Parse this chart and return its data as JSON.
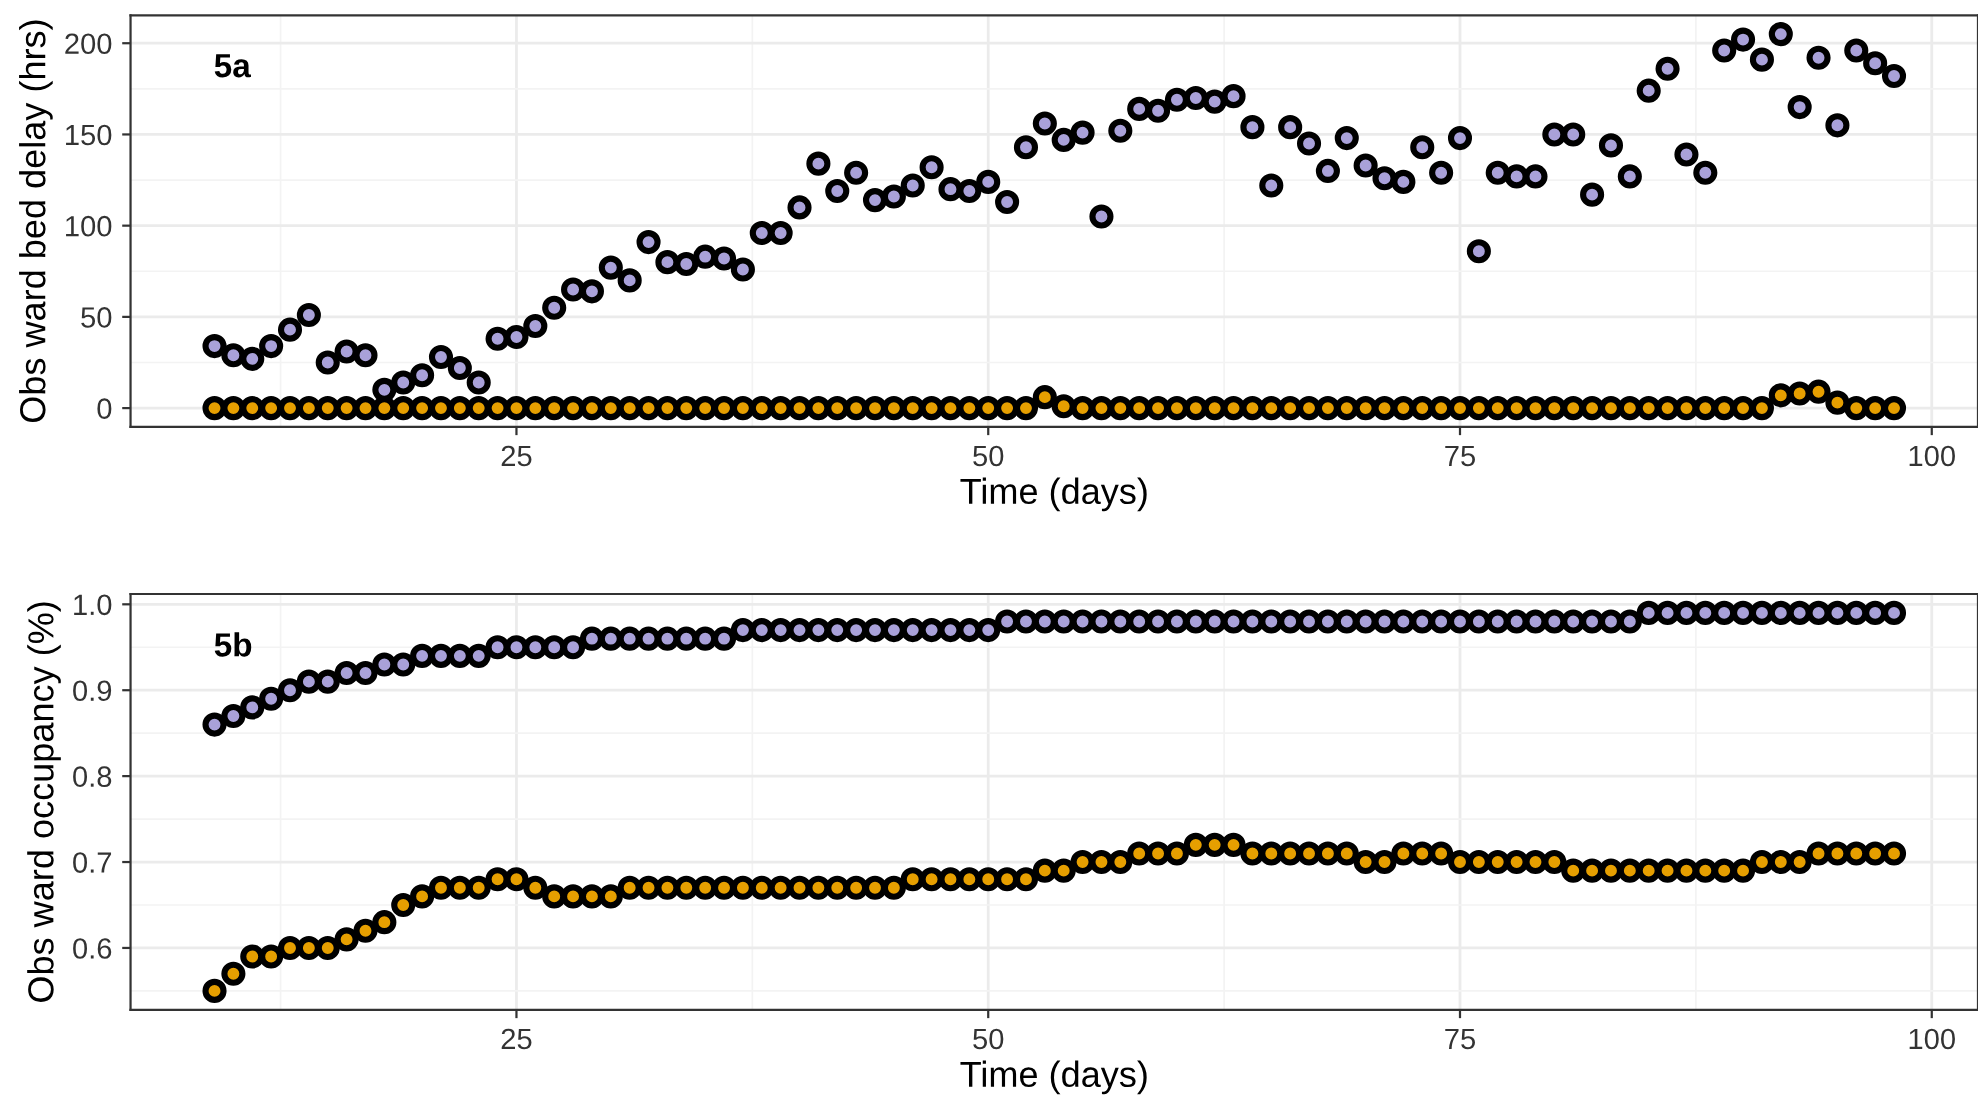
{
  "chart_data": [
    {
      "type": "scatter",
      "xlabel": "Time (days)",
      "ylabel": "Obs ward bed delay (hrs)",
      "annotations": [
        "5a"
      ],
      "x": [
        9,
        10,
        11,
        12,
        13,
        14,
        15,
        16,
        17,
        18,
        19,
        20,
        21,
        22,
        23,
        24,
        25,
        26,
        27,
        28,
        29,
        30,
        31,
        32,
        33,
        34,
        35,
        36,
        37,
        38,
        39,
        40,
        41,
        42,
        43,
        44,
        45,
        46,
        47,
        48,
        49,
        50,
        51,
        52,
        53,
        54,
        55,
        56,
        57,
        58,
        59,
        60,
        61,
        62,
        63,
        64,
        65,
        66,
        67,
        68,
        69,
        70,
        71,
        72,
        73,
        74,
        75,
        76,
        77,
        78,
        79,
        80,
        81,
        82,
        83,
        84,
        85,
        86,
        87,
        88,
        89,
        90,
        91,
        92,
        93,
        94,
        95,
        96,
        97,
        98
      ],
      "series": [
        {
          "color": "#a9a1d9",
          "values": [
            34,
            29,
            27,
            34,
            43,
            51,
            25,
            31,
            29,
            10,
            14,
            18,
            28,
            22,
            14,
            38,
            39,
            45,
            55,
            65,
            64,
            77,
            70,
            91,
            80,
            79,
            83,
            82,
            76,
            96,
            96,
            110,
            134,
            119,
            129,
            114,
            116,
            122,
            132,
            120,
            119,
            124,
            113,
            143,
            156,
            147,
            151,
            105,
            152,
            164,
            163,
            169,
            170,
            168,
            171,
            154,
            122,
            154,
            145,
            130,
            148,
            133,
            126,
            124,
            143,
            129,
            148,
            86,
            129,
            127,
            127,
            150,
            150,
            117,
            144,
            127,
            174,
            186,
            139,
            129,
            196,
            202,
            191,
            205,
            165,
            192,
            155,
            196,
            189,
            182
          ]
        },
        {
          "color": "#e69f00",
          "values": [
            0,
            0,
            0,
            0,
            0,
            0,
            0,
            0,
            0,
            0,
            0,
            0,
            0,
            0,
            0,
            0,
            0,
            0,
            0,
            0,
            0,
            0,
            0,
            0,
            0,
            0,
            0,
            0,
            0,
            0,
            0,
            0,
            0,
            0,
            0,
            0,
            0,
            0,
            0,
            0,
            0,
            0,
            0,
            0,
            6,
            1,
            0,
            0,
            0,
            0,
            0,
            0,
            0,
            0,
            0,
            0,
            0,
            0,
            0,
            0,
            0,
            0,
            0,
            0,
            0,
            0,
            0,
            0,
            0,
            0,
            0,
            0,
            0,
            0,
            0,
            0,
            0,
            0,
            0,
            0,
            0,
            0,
            0,
            7,
            8,
            9,
            3,
            0,
            0,
            0
          ]
        }
      ],
      "xlim": [
        4.55,
        102.45
      ],
      "xticks": [
        25,
        50,
        75,
        100
      ],
      "ylim": [
        -10.25,
        215.25
      ],
      "yticks": [
        0,
        50,
        100,
        150,
        200
      ],
      "grid": true,
      "marker": "circle"
    },
    {
      "type": "scatter",
      "xlabel": "Time (days)",
      "ylabel": "Obs ward occupancy (%)",
      "annotations": [
        "5b"
      ],
      "x": [
        9,
        10,
        11,
        12,
        13,
        14,
        15,
        16,
        17,
        18,
        19,
        20,
        21,
        22,
        23,
        24,
        25,
        26,
        27,
        28,
        29,
        30,
        31,
        32,
        33,
        34,
        35,
        36,
        37,
        38,
        39,
        40,
        41,
        42,
        43,
        44,
        45,
        46,
        47,
        48,
        49,
        50,
        51,
        52,
        53,
        54,
        55,
        56,
        57,
        58,
        59,
        60,
        61,
        62,
        63,
        64,
        65,
        66,
        67,
        68,
        69,
        70,
        71,
        72,
        73,
        74,
        75,
        76,
        77,
        78,
        79,
        80,
        81,
        82,
        83,
        84,
        85,
        86,
        87,
        88,
        89,
        90,
        91,
        92,
        93,
        94,
        95,
        96,
        97,
        98
      ],
      "series": [
        {
          "color": "#a9a1d9",
          "values": [
            0.86,
            0.87,
            0.88,
            0.89,
            0.9,
            0.91,
            0.91,
            0.92,
            0.92,
            0.93,
            0.93,
            0.94,
            0.94,
            0.94,
            0.94,
            0.95,
            0.95,
            0.95,
            0.95,
            0.95,
            0.96,
            0.96,
            0.96,
            0.96,
            0.96,
            0.96,
            0.96,
            0.96,
            0.97,
            0.97,
            0.97,
            0.97,
            0.97,
            0.97,
            0.97,
            0.97,
            0.97,
            0.97,
            0.97,
            0.97,
            0.97,
            0.97,
            0.98,
            0.98,
            0.98,
            0.98,
            0.98,
            0.98,
            0.98,
            0.98,
            0.98,
            0.98,
            0.98,
            0.98,
            0.98,
            0.98,
            0.98,
            0.98,
            0.98,
            0.98,
            0.98,
            0.98,
            0.98,
            0.98,
            0.98,
            0.98,
            0.98,
            0.98,
            0.98,
            0.98,
            0.98,
            0.98,
            0.98,
            0.98,
            0.98,
            0.98,
            0.99,
            0.99,
            0.99,
            0.99,
            0.99,
            0.99,
            0.99,
            0.99,
            0.99,
            0.99,
            0.99,
            0.99,
            0.99,
            0.99
          ]
        },
        {
          "color": "#e69f00",
          "values": [
            0.55,
            0.57,
            0.59,
            0.59,
            0.6,
            0.6,
            0.6,
            0.61,
            0.62,
            0.63,
            0.65,
            0.66,
            0.67,
            0.67,
            0.67,
            0.68,
            0.68,
            0.67,
            0.66,
            0.66,
            0.66,
            0.66,
            0.67,
            0.67,
            0.67,
            0.67,
            0.67,
            0.67,
            0.67,
            0.67,
            0.67,
            0.67,
            0.67,
            0.67,
            0.67,
            0.67,
            0.67,
            0.68,
            0.68,
            0.68,
            0.68,
            0.68,
            0.68,
            0.68,
            0.69,
            0.69,
            0.7,
            0.7,
            0.7,
            0.71,
            0.71,
            0.71,
            0.72,
            0.72,
            0.72,
            0.71,
            0.71,
            0.71,
            0.71,
            0.71,
            0.71,
            0.7,
            0.7,
            0.71,
            0.71,
            0.71,
            0.7,
            0.7,
            0.7,
            0.7,
            0.7,
            0.7,
            0.69,
            0.69,
            0.69,
            0.69,
            0.69,
            0.69,
            0.69,
            0.69,
            0.69,
            0.69,
            0.7,
            0.7,
            0.7,
            0.71,
            0.71,
            0.71,
            0.71,
            0.71
          ]
        }
      ],
      "xlim": [
        4.55,
        102.45
      ],
      "xticks": [
        25,
        50,
        75,
        100
      ],
      "ylim": [
        0.528,
        1.012
      ],
      "yticks": [
        0.6,
        0.7,
        0.8,
        0.9,
        {
          "value": 1.0,
          "label": "1.0"
        }
      ],
      "grid": true,
      "marker": "circle"
    }
  ]
}
